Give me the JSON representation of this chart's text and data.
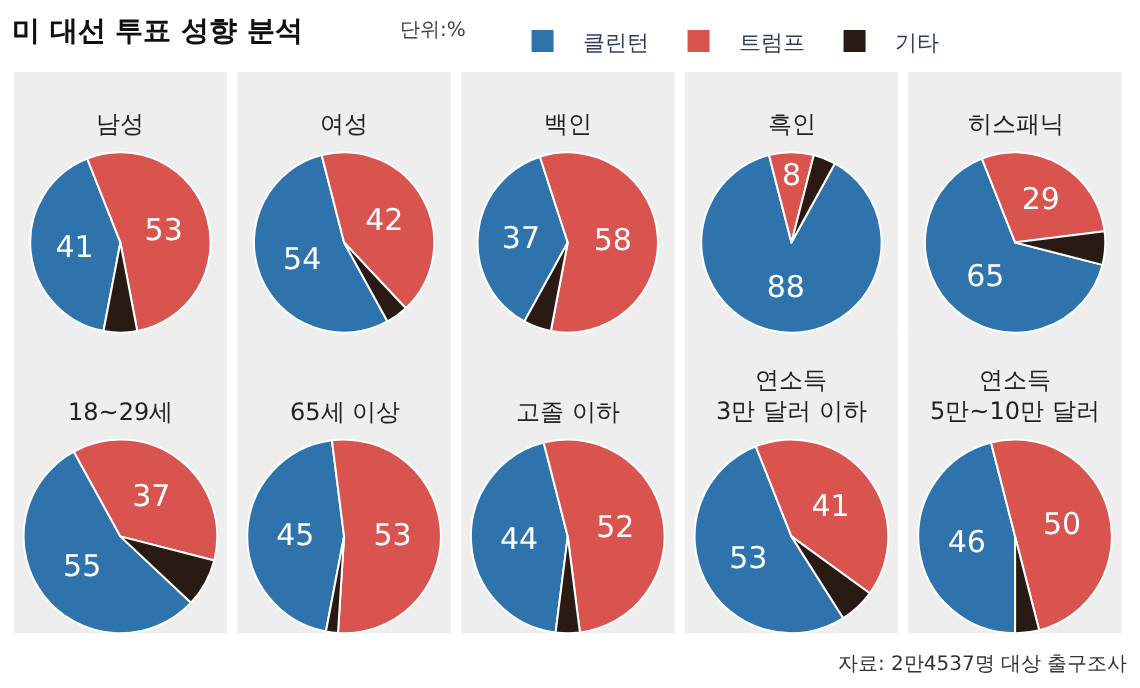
{
  "chart_data": [
    {
      "type": "pie",
      "title": "남성",
      "categories": [
        "클린턴",
        "트럼프",
        "기타"
      ],
      "values": [
        41,
        53,
        6
      ],
      "value_labels": [
        "41",
        "53",
        null
      ],
      "colors": [
        "#2f73ad",
        "#d9534f",
        "#2a1a14"
      ],
      "legend": "top",
      "legend_title": "단위:%",
      "subtitle": "미 대선 투표 성향 분석"
    },
    {
      "type": "pie",
      "title": "여성",
      "categories": [
        null,
        null,
        null
      ],
      "values": [
        54,
        42,
        4
      ],
      "value_labels": [
        "54",
        "42",
        null
      ],
      "colors": [
        "#2f73ad",
        "#d9534f",
        "#2a1a14"
      ]
    },
    {
      "type": "pie",
      "title": "백인",
      "categories": [
        null,
        null,
        null
      ],
      "values": [
        37,
        58,
        5
      ],
      "value_labels": [
        "37",
        "58",
        null
      ],
      "colors": [
        "#2f73ad",
        "#d9534f",
        "#2a1a14"
      ]
    },
    {
      "type": "pie",
      "title": "흑인",
      "categories": [
        null,
        null,
        null
      ],
      "values": [
        88,
        8,
        4
      ],
      "value_labels": [
        "88",
        "8",
        null
      ],
      "colors": [
        "#2f73ad",
        "#d9534f",
        "#2a1a14"
      ]
    },
    {
      "type": "pie",
      "title": "히스패닉",
      "categories": [
        null,
        null,
        null
      ],
      "values": [
        65,
        29,
        6
      ],
      "value_labels": [
        "65",
        "29",
        null
      ],
      "colors": [
        "#2f73ad",
        "#d9534f",
        "#2a1a14"
      ]
    },
    {
      "type": "pie",
      "title": "18~29세",
      "categories": [
        null,
        null,
        null
      ],
      "values": [
        55,
        37,
        8
      ],
      "value_labels": [
        "55",
        "37",
        null
      ],
      "colors": [
        "#2f73ad",
        "#d9534f",
        "#2a1a14"
      ]
    },
    {
      "type": "pie",
      "title": "65세 이상",
      "categories": [
        null,
        null,
        null
      ],
      "values": [
        45,
        53,
        2
      ],
      "value_labels": [
        "45",
        "53",
        null
      ],
      "colors": [
        "#2f73ad",
        "#d9534f",
        "#2a1a14"
      ]
    },
    {
      "type": "pie",
      "title": "고졸 이하",
      "categories": [
        null,
        null,
        null
      ],
      "values": [
        44,
        52,
        4
      ],
      "value_labels": [
        "44",
        "52",
        null
      ],
      "colors": [
        "#2f73ad",
        "#d9534f",
        "#2a1a14"
      ]
    },
    {
      "type": "pie",
      "title": "연소득\n3만 달러 이하",
      "categories": [
        null,
        null,
        null
      ],
      "values": [
        53,
        41,
        6
      ],
      "value_labels": [
        "53",
        "41",
        null
      ],
      "colors": [
        "#2f73ad",
        "#d9534f",
        "#2a1a14"
      ]
    },
    {
      "type": "pie",
      "title": "연소득\n5만~10만 달러",
      "categories": [
        null,
        null,
        null
      ],
      "values": [
        46,
        50,
        4
      ],
      "value_labels": [
        "46",
        "50",
        null
      ],
      "colors": [
        "#2f73ad",
        "#d9534f",
        "#2a1a14"
      ],
      "annotations": [
        "자료: 2만4537명 대상 출구조사"
      ]
    }
  ]
}
